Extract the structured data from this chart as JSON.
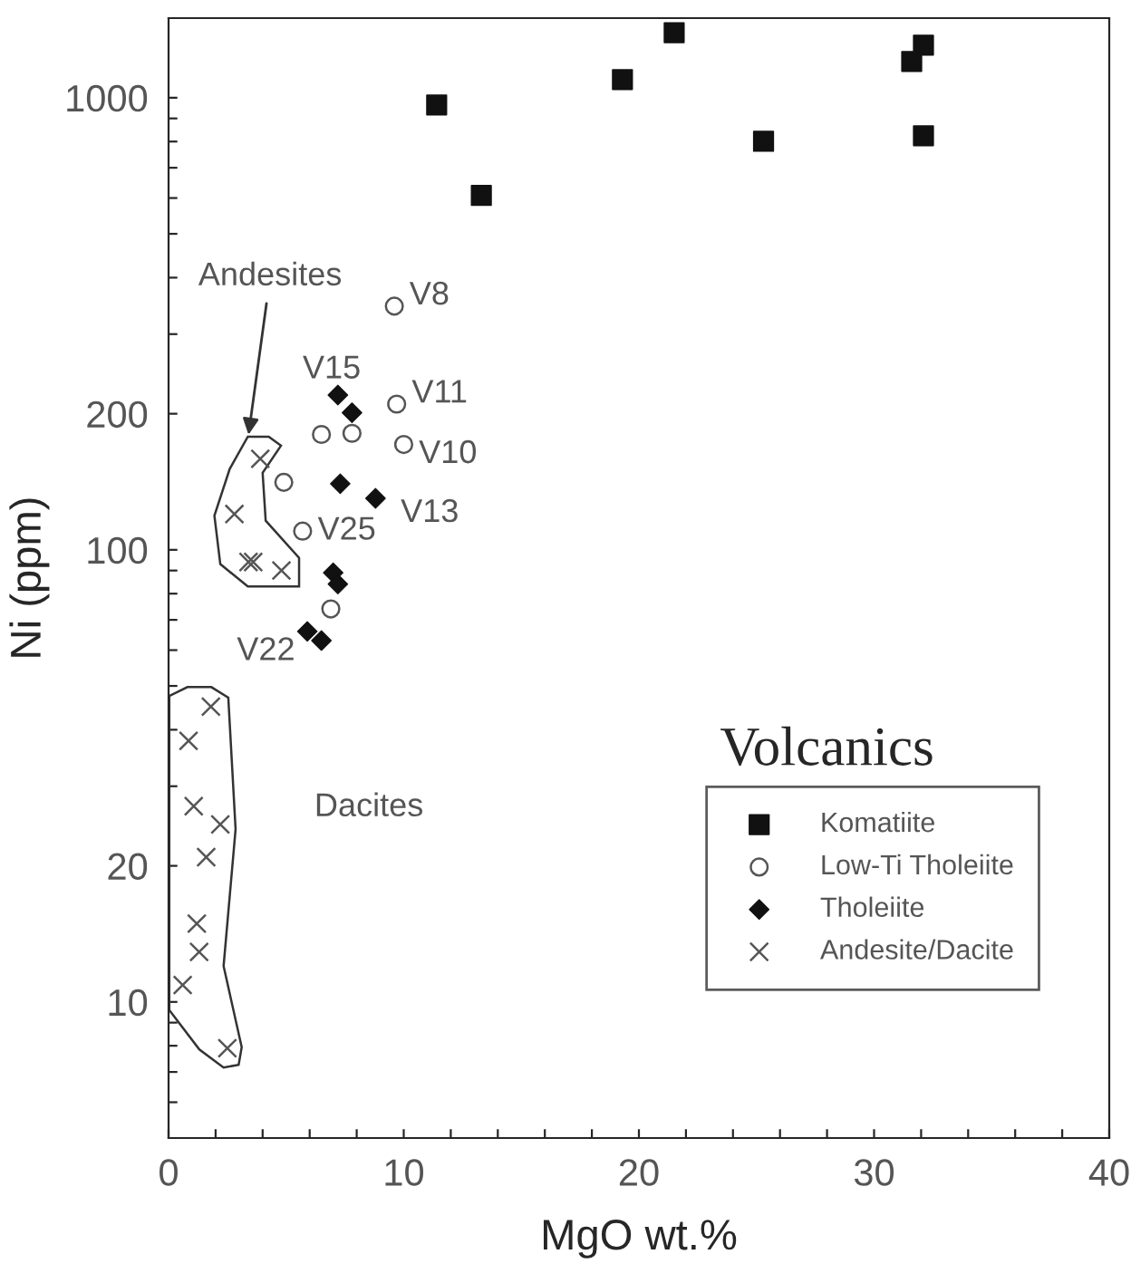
{
  "chart_data": {
    "type": "scatter",
    "xlabel": "MgO wt.%",
    "ylabel": "Ni (ppm)",
    "log": "y",
    "xlim": [
      0,
      40
    ],
    "ylim": [
      5,
      1500
    ],
    "xticks": [
      0,
      {
        "value": 2,
        "label": null
      },
      {
        "value": 4,
        "label": null
      },
      {
        "value": 6,
        "label": null
      },
      {
        "value": 8,
        "label": null
      },
      10,
      {
        "value": 12,
        "label": null
      },
      {
        "value": 14,
        "label": null
      },
      {
        "value": 16,
        "label": null
      },
      {
        "value": 18,
        "label": null
      },
      20,
      {
        "value": 22,
        "label": null
      },
      {
        "value": 24,
        "label": null
      },
      {
        "value": 26,
        "label": null
      },
      {
        "value": 28,
        "label": null
      },
      30,
      {
        "value": 32,
        "label": null
      },
      {
        "value": 34,
        "label": null
      },
      {
        "value": 36,
        "label": null
      },
      {
        "value": 38,
        "label": null
      },
      40
    ],
    "yticks": [
      {
        "value": 6,
        "label": null
      },
      {
        "value": 7,
        "label": null
      },
      {
        "value": 8,
        "label": null
      },
      {
        "value": 9,
        "label": null
      },
      10,
      20,
      {
        "value": 30,
        "label": null
      },
      {
        "value": 40,
        "label": null
      },
      {
        "value": 50,
        "label": null
      },
      {
        "value": 60,
        "label": null
      },
      {
        "value": 70,
        "label": null
      },
      {
        "value": 80,
        "label": null
      },
      {
        "value": 90,
        "label": null
      },
      100,
      200,
      {
        "value": 300,
        "label": null
      },
      {
        "value": 400,
        "label": null
      },
      {
        "value": 500,
        "label": null
      },
      {
        "value": 600,
        "label": null
      },
      {
        "value": 700,
        "label": null
      },
      {
        "value": 800,
        "label": null
      },
      {
        "value": 900,
        "label": null
      },
      1000
    ],
    "grid": false,
    "legend": "bottom right",
    "series": [
      {
        "name": "Komatiite",
        "color": "#111111",
        "marker": "square",
        "x": [
          11.4,
          13.3,
          19.3,
          21.5,
          25.3,
          31.6,
          32.1,
          32.1
        ],
        "values": [
          964,
          608,
          1097,
          1393,
          801,
          1203,
          1307,
          824
        ]
      },
      {
        "name": "Low-Ti Tholeiite",
        "color": "#555555",
        "marker": "circle",
        "x": [
          9.6,
          9.7,
          6.5,
          7.8,
          10.0,
          4.9,
          5.7,
          6.9
        ],
        "values": [
          346,
          210,
          180,
          181,
          171,
          141,
          110,
          74
        ]
      },
      {
        "name": "Tholeiite",
        "color": "#111111",
        "marker": "diamond",
        "x": [
          7.2,
          7.8,
          7.3,
          8.8,
          7.0,
          7.2,
          5.9,
          6.5
        ],
        "values": [
          220,
          201,
          140,
          130,
          89,
          84,
          66,
          63
        ]
      },
      {
        "name": "Andesite/Dacite",
        "color": "#555555",
        "marker": "cross",
        "x": [
          3.9,
          2.8,
          3.4,
          3.6,
          4.8,
          1.8,
          0.85,
          1.07,
          2.2,
          1.6,
          1.2,
          1.3,
          0.6,
          2.5
        ],
        "values": [
          159,
          120,
          94,
          94,
          90,
          45,
          37.8,
          27.1,
          24.7,
          20.9,
          14.9,
          12.9,
          10.9,
          7.9
        ]
      }
    ],
    "annotations": [
      {
        "text": "V8",
        "x": 9.6,
        "y": 346
      },
      {
        "text": "V11",
        "x": 9.7,
        "y": 210
      },
      {
        "text": "V10",
        "x": 10.0,
        "y": 171
      },
      {
        "text": "V15",
        "x": 7.2,
        "y": 220
      },
      {
        "text": "V13",
        "x": 8.8,
        "y": 130
      },
      {
        "text": "V25",
        "x": 5.7,
        "y": 110
      },
      {
        "text": "V22",
        "x": 5.9,
        "y": 66
      },
      "Andesites",
      "Dacites",
      "Volcanics"
    ]
  }
}
